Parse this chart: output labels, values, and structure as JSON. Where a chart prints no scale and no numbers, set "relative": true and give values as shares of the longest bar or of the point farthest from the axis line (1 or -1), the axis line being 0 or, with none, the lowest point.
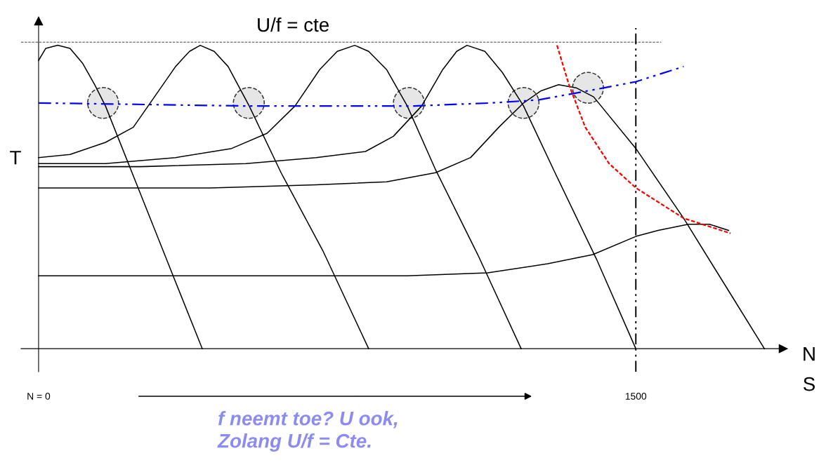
{
  "chart_data": {
    "type": "line",
    "title": "U/f = cte",
    "xlabel": "N",
    "ylabel": "T",
    "annotations": [
      "S",
      "f neemt toe? U ook,\nZolang U/f = Cte."
    ],
    "relative": true,
    "xlim": [
      -44,
      1870
    ],
    "xticks": [
      {
        "value": 0,
        "label": "N = 0"
      },
      1500
    ],
    "grid": false,
    "ref_lines": [
      {
        "axis": "y",
        "value": 1.01,
        "color": "#808080",
        "line_style": "dashed"
      },
      {
        "axis": "x",
        "value": 1500,
        "color": "#000000",
        "line_style": "dashdot"
      }
    ],
    "series": [
      {
        "color": "#000000",
        "line_style": "solid",
        "x": [
          0,
          18,
          48,
          79,
          111,
          141,
          168,
          256,
          344,
          411
        ],
        "values": [
          0.95,
          0.99,
          1.0,
          0.99,
          0.94,
          0.87,
          0.8,
          0.51,
          0.22,
          0
        ]
      },
      {
        "color": "#000000",
        "line_style": "solid",
        "x": [
          0,
          79,
          168,
          238,
          291,
          344,
          379,
          406,
          441,
          476,
          529,
          609,
          715,
          829
        ],
        "values": [
          0.63,
          0.64,
          0.68,
          0.73,
          0.83,
          0.93,
          0.98,
          1.0,
          0.98,
          0.93,
          0.8,
          0.58,
          0.32,
          0
        ]
      },
      {
        "color": "#000000",
        "line_style": "solid",
        "x": [
          0,
          168,
          344,
          485,
          574,
          644,
          706,
          750,
          794,
          829,
          874,
          926,
          997,
          1103,
          1212
        ],
        "values": [
          0.61,
          0.61,
          0.63,
          0.66,
          0.71,
          0.8,
          0.92,
          0.98,
          1.0,
          0.98,
          0.92,
          0.8,
          0.59,
          0.31,
          0
        ]
      },
      {
        "color": "#000000",
        "line_style": "solid",
        "x": [
          0,
          256,
          521,
          697,
          821,
          891,
          962,
          1015,
          1050,
          1076,
          1121,
          1165,
          1218,
          1297,
          1403,
          1500
        ],
        "values": [
          0.6,
          0.6,
          0.61,
          0.63,
          0.65,
          0.7,
          0.8,
          0.92,
          0.98,
          1.0,
          0.98,
          0.91,
          0.8,
          0.58,
          0.29,
          0
        ]
      },
      {
        "color": "#000000",
        "line_style": "solid",
        "x": [
          0,
          432,
          697,
          874,
          997,
          1085,
          1156,
          1218,
          1262,
          1306,
          1350,
          1394,
          1500,
          1620,
          1738,
          1823
        ],
        "values": [
          0.53,
          0.53,
          0.54,
          0.55,
          0.58,
          0.63,
          0.73,
          0.81,
          0.85,
          0.87,
          0.86,
          0.83,
          0.66,
          0.43,
          0.18,
          0
        ]
      },
      {
        "color": "#000000",
        "line_style": "solid",
        "x": [
          0,
          432,
          926,
          1128,
          1279,
          1392,
          1500,
          1556,
          1632,
          1685,
          1733
        ],
        "values": [
          0.24,
          0.24,
          0.24,
          0.25,
          0.28,
          0.31,
          0.37,
          0.39,
          0.41,
          0.41,
          0.39
        ]
      },
      {
        "color": "#ff0000",
        "line_style": "dashed",
        "x": [
          1302,
          1332,
          1373,
          1433,
          1500,
          1620,
          1738
        ],
        "values": [
          1.0,
          0.87,
          0.73,
          0.61,
          0.53,
          0.43,
          0.38
        ]
      },
      {
        "color": "#0000ff",
        "line_style": "dashdot",
        "x": [
          0,
          521,
          944,
          1138,
          1256,
          1338,
          1421,
          1500,
          1620
        ],
        "values": [
          0.81,
          0.8,
          0.8,
          0.81,
          0.82,
          0.84,
          0.86,
          0.88,
          0.93
        ]
      },
      {
        "type": "scatter",
        "color": "#e6e6e6",
        "marker": "circle",
        "x": [
          162,
          528,
          930,
          1218,
          1380
        ],
        "values": [
          0.81,
          0.81,
          0.81,
          0.81,
          0.86
        ]
      }
    ]
  }
}
